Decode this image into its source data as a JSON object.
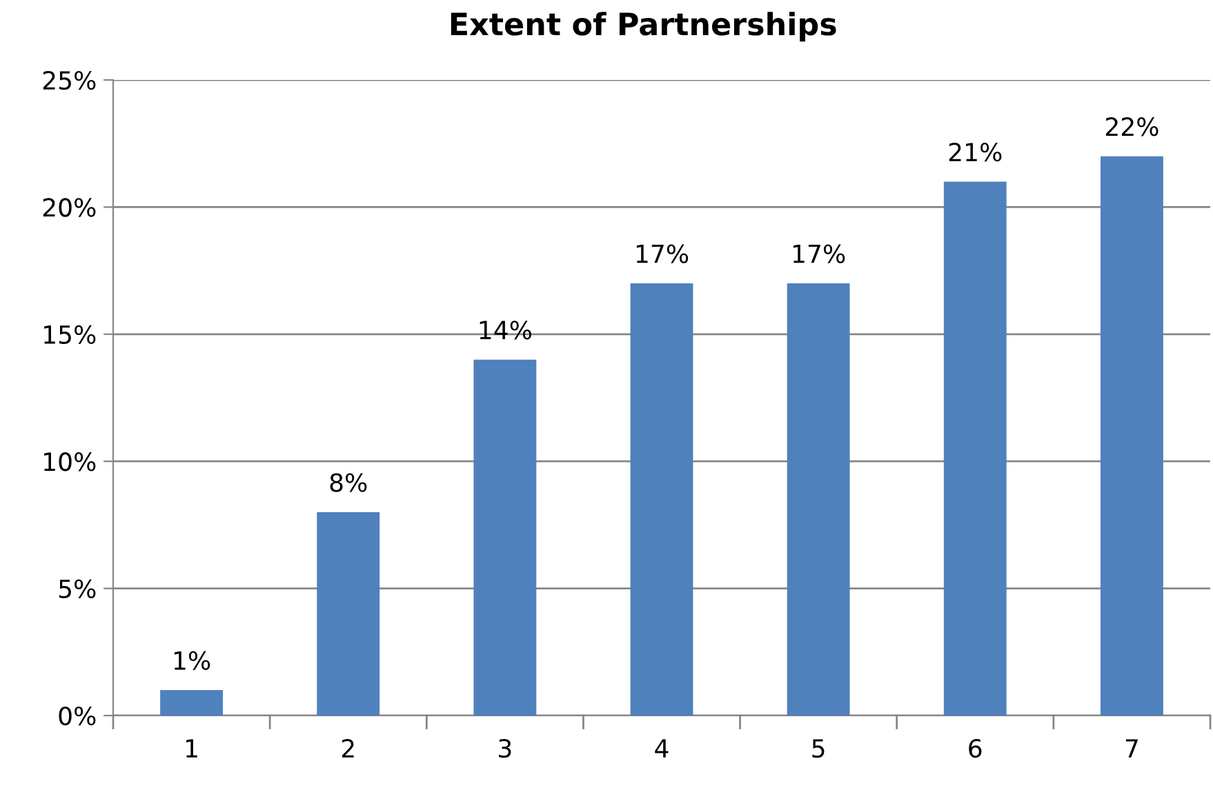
{
  "chart_data": {
    "type": "bar",
    "title": "Extent of Partnerships",
    "categories": [
      "1",
      "2",
      "3",
      "4",
      "5",
      "6",
      "7"
    ],
    "values": [
      1,
      8,
      14,
      17,
      17,
      21,
      22
    ],
    "value_labels": [
      "1%",
      "8%",
      "14%",
      "17%",
      "17%",
      "21%",
      "22%"
    ],
    "color": "#4f81bd",
    "ylim": [
      0,
      25
    ],
    "yticks": [
      {
        "value": 0,
        "label": "0%"
      },
      {
        "value": 5,
        "label": "5%"
      },
      {
        "value": 10,
        "label": "10%"
      },
      {
        "value": 15,
        "label": "15%"
      },
      {
        "value": 20,
        "label": "20%"
      },
      {
        "value": 25,
        "label": "25%"
      }
    ],
    "grid": "y",
    "legend": false
  }
}
